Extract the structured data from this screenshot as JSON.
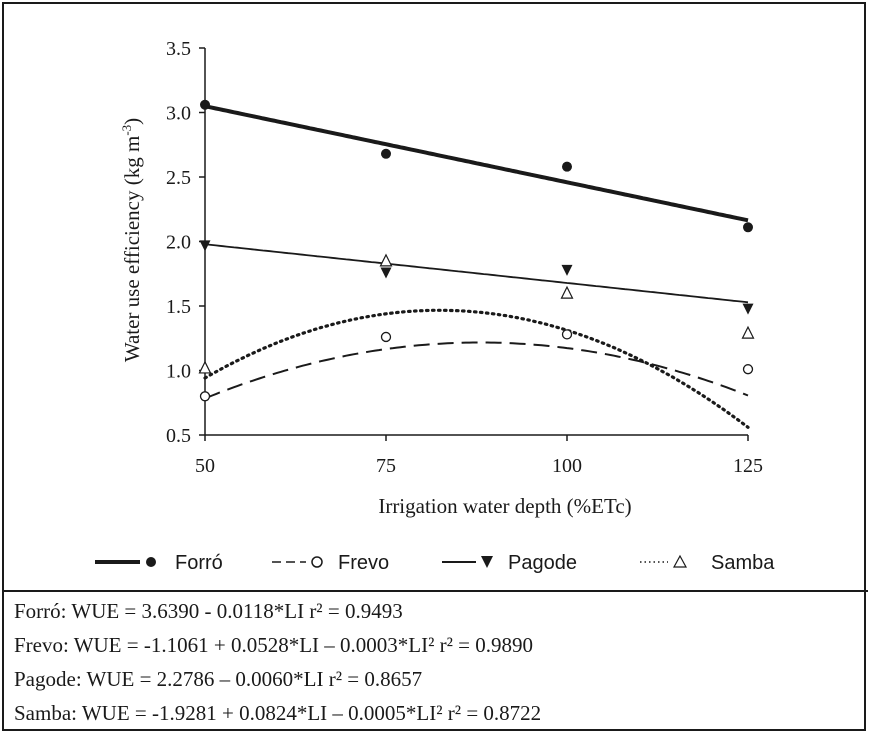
{
  "chart_data": {
    "type": "scatter",
    "xlabel": "Irrigation water depth (%ETc)",
    "ylabel_main": "Water use efficiency (kg m",
    "ylabel_sup": "-3",
    "ylabel_close": ")",
    "x_ticks": [
      "50",
      "75",
      "100",
      "125"
    ],
    "x_tick_values": [
      50,
      75,
      100,
      125
    ],
    "y_ticks": [
      "0.5",
      "1.0",
      "1.5",
      "2.0",
      "2.5",
      "3.0",
      "3.5"
    ],
    "y_tick_values": [
      0.5,
      1.0,
      1.5,
      2.0,
      2.5,
      3.0,
      3.5
    ],
    "xlim": [
      50,
      125
    ],
    "ylim": [
      0.5,
      3.5
    ],
    "grid": false,
    "legend_position": "bottom",
    "series": [
      {
        "name": "Forró",
        "key": "forro",
        "marker": "circle-filled",
        "line": "thick-solid",
        "color": "#1a1a1a",
        "x": [
          50,
          75,
          100,
          125
        ],
        "y": [
          3.06,
          2.68,
          2.58,
          2.11
        ],
        "fit": {
          "kind": "linear",
          "a": 3.639,
          "b": -0.0118,
          "c": 0
        }
      },
      {
        "name": "Frevo",
        "key": "frevo",
        "marker": "circle-open",
        "line": "dashed",
        "color": "#1a1a1a",
        "x": [
          50,
          75,
          100,
          125
        ],
        "y": [
          0.8,
          1.26,
          1.28,
          1.01
        ],
        "fit": {
          "kind": "quadratic",
          "a": -1.1061,
          "b": 0.0528,
          "c": -0.0003
        }
      },
      {
        "name": "Pagode",
        "key": "pagode",
        "marker": "triangle-down-filled",
        "line": "thin-solid",
        "color": "#1a1a1a",
        "x": [
          50,
          75,
          100,
          125
        ],
        "y": [
          1.97,
          1.76,
          1.78,
          1.48
        ],
        "fit": {
          "kind": "linear",
          "a": 2.2786,
          "b": -0.006,
          "c": 0
        }
      },
      {
        "name": "Samba",
        "key": "samba",
        "marker": "triangle-up-open",
        "line": "dotted",
        "color": "#1a1a1a",
        "x": [
          50,
          75,
          100,
          125
        ],
        "y": [
          1.02,
          1.85,
          1.6,
          1.29
        ],
        "fit": {
          "kind": "quadratic",
          "a": -1.9281,
          "b": 0.0824,
          "c": -0.0005
        }
      }
    ]
  },
  "legend": {
    "items": [
      {
        "label": "Forró"
      },
      {
        "label": "Frevo"
      },
      {
        "label": "Pagode"
      },
      {
        "label": "Samba"
      }
    ]
  },
  "equations": [
    "Forró: WUE = 3.6390 - 0.0118*LI  r² = 0.9493",
    "Frevo: WUE = -1.1061 + 0.0528*LI – 0.0003*LI²  r² = 0.9890",
    "Pagode: WUE = 2.2786 – 0.0060*LI  r² = 0.8657",
    "Samba: WUE = -1.9281 + 0.0824*LI – 0.0005*LI²  r² = 0.8722"
  ]
}
